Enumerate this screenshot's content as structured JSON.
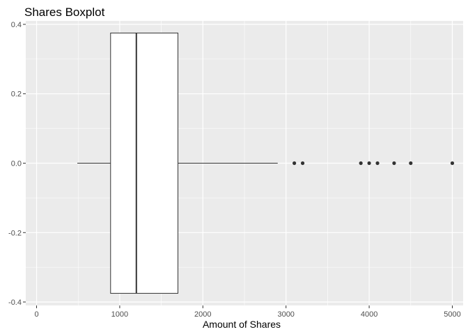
{
  "chart_data": {
    "type": "boxplot",
    "title": "Shares Boxplot",
    "xlabel": "Amount of Shares",
    "ylabel": "",
    "xlim": [
      -130,
      5130
    ],
    "ylim": [
      -0.41,
      0.41
    ],
    "x_ticks": [
      0,
      1000,
      2000,
      3000,
      4000,
      5000
    ],
    "y_ticks": [
      0.4,
      0.2,
      0.0,
      -0.2,
      -0.4
    ],
    "x_tick_labels": [
      "0",
      "1000",
      "2000",
      "3000",
      "4000",
      "5000"
    ],
    "y_tick_labels": [
      "0.4",
      "0.2",
      "0.0",
      "-0.2",
      "-0.4"
    ],
    "box": {
      "min": 490,
      "q1": 890,
      "median": 1200,
      "q3": 1700,
      "max": 2900,
      "y_low": -0.375,
      "y_high": 0.375,
      "y_center": 0.0
    },
    "outliers": [
      3100,
      3200,
      3900,
      4000,
      4100,
      4300,
      4500,
      5000
    ],
    "grid": true,
    "legend": "none",
    "colors": {
      "panel": "#ebebeb",
      "grid": "#ffffff",
      "box_fill": "#ffffff",
      "box_stroke": "#333333",
      "point": "#333333"
    }
  }
}
